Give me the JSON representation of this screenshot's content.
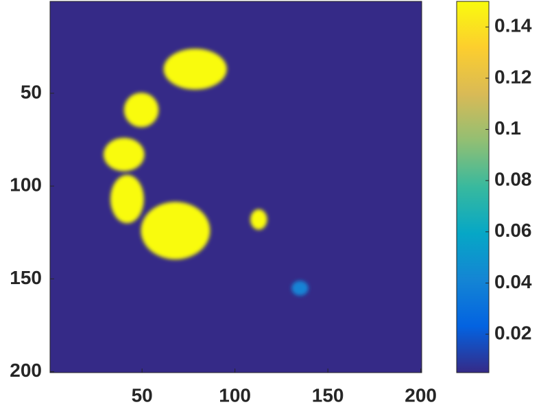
{
  "chart_data": {
    "type": "heatmap",
    "xlim": [
      0.5,
      200.5
    ],
    "ylim": [
      0.5,
      200.5
    ],
    "y_reversed": true,
    "xticks": [
      50,
      100,
      150,
      200
    ],
    "yticks": [
      50,
      100,
      150,
      200
    ],
    "clim": [
      0.005,
      0.15
    ],
    "cticks": [
      0.02,
      0.04,
      0.06,
      0.08,
      0.1,
      0.12,
      0.14
    ],
    "colormap": [
      "#352a87",
      "#0363e1",
      "#1485d4",
      "#06a7c6",
      "#38b99e",
      "#92bf73",
      "#d9ba56",
      "#fcce2e",
      "#f9fb0e"
    ],
    "blobs": [
      {
        "x": 78.6,
        "y": 37,
        "rx": 17,
        "ry": 11,
        "value": 0.15
      },
      {
        "x": 49.6,
        "y": 59,
        "rx": 9.3,
        "ry": 9.3,
        "value": 0.15
      },
      {
        "x": 40.3,
        "y": 83,
        "rx": 11,
        "ry": 9,
        "value": 0.15
      },
      {
        "x": 42,
        "y": 107,
        "rx": 9,
        "ry": 13,
        "value": 0.15
      },
      {
        "x": 68,
        "y": 124,
        "rx": 18.6,
        "ry": 15.5,
        "value": 0.15
      },
      {
        "x": 112.8,
        "y": 118,
        "rx": 4.5,
        "ry": 5.5,
        "value": 0.15
      },
      {
        "x": 135,
        "y": 155,
        "rx": 4.5,
        "ry": 4,
        "value": 0.04
      }
    ]
  }
}
